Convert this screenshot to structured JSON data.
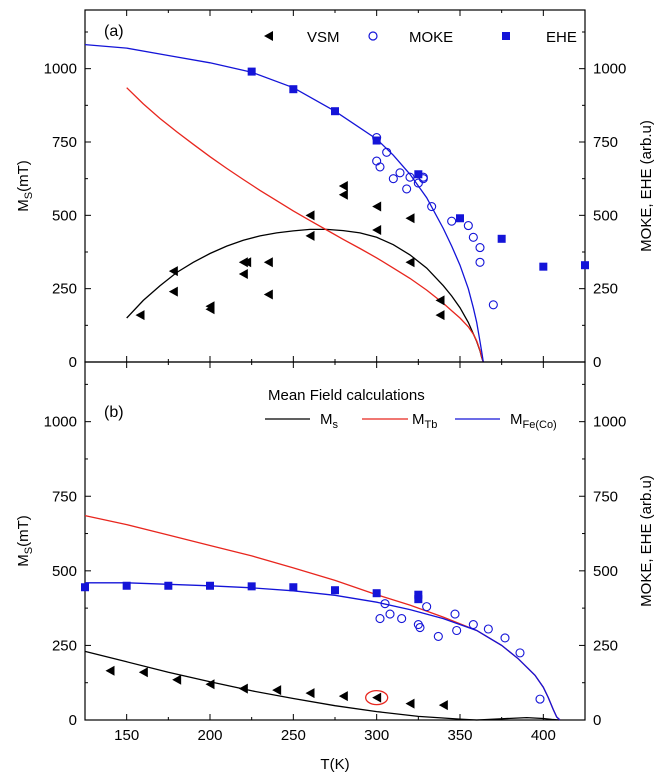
{
  "colors": {
    "black": "#000000",
    "red": "#e8261e",
    "blue": "#1414d8",
    "right_axis_label": "#1a1ad0"
  },
  "x_axis_label": "T(K)",
  "chart_data": [
    {
      "type": "scatter",
      "panel_label": "(a)",
      "xlim": [
        125,
        425
      ],
      "ylim": [
        0,
        1200
      ],
      "x_ticks": [
        150,
        200,
        250,
        300,
        350,
        400
      ],
      "y_ticks": [
        0,
        250,
        500,
        750,
        1000
      ],
      "y_tick_labels": [
        "0",
        "250",
        "500",
        "750",
        "1000"
      ],
      "ylabel_main": "M",
      "ylabel_sub": "S",
      "ylabel_unit": "(mT)",
      "ylabel_right": "MOKE, EHE (arb.u)",
      "legend": [
        "VSM",
        "MOKE",
        "EHE"
      ],
      "series": [
        {
          "name": "VSM",
          "marker": "triangle-left",
          "color": "#000000",
          "x": [
            158,
            178,
            178,
            200,
            200,
            220,
            220,
            222,
            235,
            235,
            260,
            260,
            280,
            280,
            300,
            300,
            320,
            320,
            338,
            338
          ],
          "y": [
            160,
            310,
            240,
            190,
            180,
            340,
            300,
            340,
            340,
            230,
            500,
            430,
            600,
            570,
            530,
            450,
            490,
            340,
            210,
            160
          ]
        },
        {
          "name": "MOKE",
          "marker": "circle-open",
          "color": "#1414d8",
          "x": [
            300,
            300,
            302,
            306,
            310,
            314,
            318,
            320,
            325,
            328,
            328,
            333,
            345,
            355,
            358,
            362,
            362,
            370
          ],
          "y": [
            765,
            685,
            665,
            715,
            625,
            645,
            590,
            630,
            610,
            630,
            625,
            530,
            480,
            465,
            425,
            390,
            340,
            195
          ]
        },
        {
          "name": "EHE",
          "marker": "square",
          "color": "#1414d8",
          "x": [
            225,
            250,
            275,
            300,
            325,
            350,
            375,
            400,
            425
          ],
          "y": [
            990,
            930,
            855,
            755,
            640,
            490,
            420,
            325,
            330
          ]
        }
      ],
      "curves": [
        {
          "color": "#000000",
          "x": [
            150,
            160,
            170,
            180,
            190,
            200,
            210,
            220,
            230,
            240,
            250,
            260,
            270,
            280,
            290,
            300,
            310,
            320,
            330,
            340,
            345,
            350,
            355,
            360,
            362,
            363,
            364
          ],
          "y": [
            150,
            210,
            260,
            305,
            340,
            370,
            395,
            415,
            430,
            440,
            447,
            452,
            452,
            448,
            440,
            425,
            400,
            365,
            320,
            260,
            225,
            185,
            135,
            70,
            38,
            15,
            0
          ]
        },
        {
          "color": "#e8261e",
          "x": [
            150,
            160,
            170,
            180,
            190,
            200,
            210,
            220,
            230,
            240,
            250,
            260,
            270,
            280,
            290,
            300,
            310,
            320,
            330,
            340,
            345,
            350,
            355,
            358,
            360,
            362,
            363,
            364
          ],
          "y": [
            935,
            880,
            830,
            785,
            742,
            700,
            660,
            622,
            585,
            550,
            515,
            482,
            450,
            418,
            387,
            355,
            320,
            285,
            245,
            200,
            175,
            150,
            120,
            95,
            72,
            40,
            18,
            0
          ]
        },
        {
          "color": "#1414d8",
          "x": [
            125,
            150,
            175,
            200,
            225,
            250,
            275,
            300,
            310,
            320,
            330,
            340,
            345,
            350,
            355,
            358,
            360,
            362,
            363,
            364
          ],
          "y": [
            1082,
            1070,
            1045,
            1020,
            988,
            935,
            855,
            760,
            705,
            640,
            560,
            455,
            395,
            330,
            250,
            185,
            135,
            70,
            35,
            0
          ]
        }
      ]
    },
    {
      "type": "scatter",
      "panel_label": "(b)",
      "xlim": [
        125,
        425
      ],
      "ylim": [
        0,
        1200
      ],
      "x_ticks": [
        150,
        200,
        250,
        300,
        350,
        400
      ],
      "x_tick_labels": [
        "150",
        "200",
        "250",
        "300",
        "350",
        "400"
      ],
      "y_ticks": [
        0,
        250,
        500,
        750,
        1000
      ],
      "y_tick_labels": [
        "0",
        "250",
        "500",
        "750",
        "1000"
      ],
      "ylabel_main": "M",
      "ylabel_sub": "S",
      "ylabel_unit": "(mT)",
      "ylabel_right": "MOKE, EHE (arb.u)",
      "legend_title": "Mean Field calculations",
      "legend": [
        {
          "main": "M",
          "sub": "s"
        },
        {
          "main": "M",
          "sub": "Tb"
        },
        {
          "main": "M",
          "sub": "Fe(Co)"
        }
      ],
      "series": [
        {
          "marker": "triangle-left",
          "color": "#000000",
          "x": [
            140,
            160,
            180,
            200,
            220,
            240,
            260,
            280,
            300,
            320,
            340
          ],
          "y": [
            165,
            160,
            135,
            120,
            105,
            100,
            90,
            80,
            75,
            55,
            50
          ]
        },
        {
          "marker": "square",
          "color": "#1414d8",
          "x": [
            125,
            150,
            175,
            200,
            225,
            250,
            275,
            300,
            325,
            325
          ],
          "y": [
            445,
            450,
            450,
            450,
            448,
            445,
            435,
            425,
            420,
            405
          ]
        },
        {
          "marker": "circle-open",
          "color": "#1414d8",
          "x": [
            302,
            305,
            308,
            315,
            325,
            326,
            330,
            337,
            347,
            348,
            358,
            367,
            377,
            386,
            398
          ],
          "y": [
            340,
            390,
            355,
            340,
            320,
            310,
            380,
            280,
            355,
            300,
            320,
            305,
            275,
            225,
            70
          ]
        }
      ],
      "highlight": {
        "x": 300,
        "y": 75
      },
      "curves": [
        {
          "color": "#000000",
          "x": [
            125,
            150,
            175,
            200,
            225,
            250,
            275,
            300,
            325,
            350,
            360,
            375,
            390,
            400,
            405,
            410
          ],
          "y": [
            230,
            195,
            160,
            128,
            98,
            72,
            48,
            28,
            12,
            3,
            0,
            4,
            8,
            5,
            2,
            0
          ]
        },
        {
          "color": "#e8261e",
          "x": [
            125,
            150,
            175,
            200,
            225,
            250,
            275,
            300,
            320,
            340,
            360,
            375,
            385,
            395,
            400,
            403,
            406,
            408,
            410
          ],
          "y": [
            685,
            655,
            620,
            585,
            550,
            510,
            468,
            420,
            385,
            345,
            300,
            250,
            205,
            150,
            110,
            75,
            35,
            10,
            0
          ]
        },
        {
          "color": "#1414d8",
          "x": [
            125,
            150,
            175,
            200,
            225,
            250,
            275,
            300,
            320,
            340,
            360,
            375,
            385,
            395,
            400,
            403,
            406,
            408,
            410
          ],
          "y": [
            460,
            460,
            455,
            450,
            443,
            433,
            418,
            395,
            370,
            340,
            300,
            250,
            205,
            150,
            110,
            75,
            35,
            10,
            0
          ]
        }
      ]
    }
  ]
}
